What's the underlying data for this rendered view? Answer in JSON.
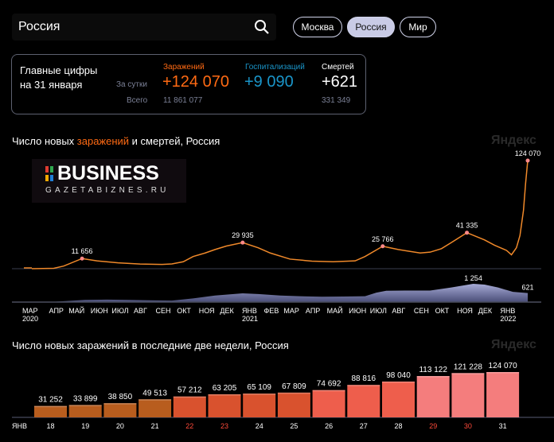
{
  "search": {
    "value": "Россия",
    "icon": "search-icon"
  },
  "tabs": [
    {
      "label": "Москва",
      "active": false
    },
    {
      "label": "Россия",
      "active": true
    },
    {
      "label": "Мир",
      "active": false
    }
  ],
  "summary": {
    "title_line1": "Главные цифры",
    "title_line2": "на 31 января",
    "per_day_label": "За сутки",
    "total_label": "Всего",
    "infections": {
      "label": "Заражений",
      "today": "+124 070",
      "total": "11 861 077",
      "color": "#ff6a13"
    },
    "hospitalizations": {
      "label": "Госпитализаций",
      "today": "+9 090",
      "color": "#1a95c9"
    },
    "deaths": {
      "label": "Смертей",
      "today": "+621",
      "total": "331 349",
      "color": "#ffffff"
    }
  },
  "brand": "Яндекс",
  "chart_data": [
    {
      "type": "line",
      "title_parts": [
        "Число новых ",
        "заражений",
        " и смертей, Россия"
      ],
      "cases_color": "#f0892a",
      "deaths_color": "#8e93c2",
      "x_ticks": [
        {
          "label": "МАР",
          "date": "2020-03-01",
          "year": "2020"
        },
        {
          "label": "АПР",
          "date": "2020-04-01"
        },
        {
          "label": "МАЙ",
          "date": "2020-05-01"
        },
        {
          "label": "ИЮН",
          "date": "2020-06-01"
        },
        {
          "label": "ИЮЛ",
          "date": "2020-07-01"
        },
        {
          "label": "АВГ",
          "date": "2020-08-01"
        },
        {
          "label": "СЕН",
          "date": "2020-09-01"
        },
        {
          "label": "ОКТ",
          "date": "2020-10-01"
        },
        {
          "label": "НОЯ",
          "date": "2020-11-01"
        },
        {
          "label": "ДЕК",
          "date": "2020-12-01"
        },
        {
          "label": "ЯНВ",
          "date": "2021-01-01",
          "year": "2021"
        },
        {
          "label": "ФЕВ",
          "date": "2021-02-01"
        },
        {
          "label": "МАР",
          "date": "2021-03-01"
        },
        {
          "label": "АПР",
          "date": "2021-04-01"
        },
        {
          "label": "МАЙ",
          "date": "2021-05-01"
        },
        {
          "label": "ИЮН",
          "date": "2021-06-01"
        },
        {
          "label": "ИЮЛ",
          "date": "2021-07-01"
        },
        {
          "label": "АВГ",
          "date": "2021-08-01"
        },
        {
          "label": "СЕН",
          "date": "2021-09-01"
        },
        {
          "label": "ОКТ",
          "date": "2021-10-01"
        },
        {
          "label": "НОЯ",
          "date": "2021-11-01"
        },
        {
          "label": "ДЕК",
          "date": "2021-12-01"
        },
        {
          "label": "ЯНВ",
          "date": "2022-01-01",
          "year": "2022"
        }
      ],
      "cases": [
        [
          "2020-03-01",
          0
        ],
        [
          "2020-04-01",
          500
        ],
        [
          "2020-04-15",
          3000
        ],
        [
          "2020-05-11",
          11656
        ],
        [
          "2020-06-01",
          9000
        ],
        [
          "2020-07-01",
          6700
        ],
        [
          "2020-08-01",
          5400
        ],
        [
          "2020-09-01",
          4900
        ],
        [
          "2020-09-15",
          5500
        ],
        [
          "2020-10-01",
          8000
        ],
        [
          "2020-10-15",
          14000
        ],
        [
          "2020-11-01",
          18000
        ],
        [
          "2020-11-15",
          22000
        ],
        [
          "2020-12-01",
          26000
        ],
        [
          "2020-12-24",
          29935
        ],
        [
          "2021-01-15",
          24000
        ],
        [
          "2021-02-01",
          18000
        ],
        [
          "2021-03-01",
          11000
        ],
        [
          "2021-04-01",
          8700
        ],
        [
          "2021-05-01",
          8000
        ],
        [
          "2021-06-01",
          9000
        ],
        [
          "2021-06-15",
          14000
        ],
        [
          "2021-07-10",
          25766
        ],
        [
          "2021-08-01",
          22000
        ],
        [
          "2021-09-01",
          18000
        ],
        [
          "2021-09-15",
          19000
        ],
        [
          "2021-10-01",
          23000
        ],
        [
          "2021-10-15",
          30000
        ],
        [
          "2021-11-06",
          41335
        ],
        [
          "2021-12-01",
          33000
        ],
        [
          "2021-12-15",
          27000
        ],
        [
          "2022-01-01",
          21000
        ],
        [
          "2022-01-08",
          16000
        ],
        [
          "2022-01-15",
          24000
        ],
        [
          "2022-01-20",
          38000
        ],
        [
          "2022-01-25",
          67000
        ],
        [
          "2022-01-28",
          98000
        ],
        [
          "2022-01-31",
          124070
        ]
      ],
      "cases_labels": [
        [
          "2020-05-11",
          "11 656"
        ],
        [
          "2020-12-24",
          "29 935"
        ],
        [
          "2021-07-10",
          "25 766"
        ],
        [
          "2021-11-06",
          "41 335"
        ],
        [
          "2022-01-31",
          "124 070"
        ]
      ],
      "deaths": [
        [
          "2020-03-15",
          0
        ],
        [
          "2020-04-01",
          20
        ],
        [
          "2020-05-15",
          150
        ],
        [
          "2020-06-15",
          170
        ],
        [
          "2020-07-15",
          150
        ],
        [
          "2020-08-15",
          120
        ],
        [
          "2020-09-15",
          100
        ],
        [
          "2020-10-15",
          250
        ],
        [
          "2020-11-15",
          450
        ],
        [
          "2020-12-24",
          600
        ],
        [
          "2021-01-15",
          550
        ],
        [
          "2021-02-15",
          450
        ],
        [
          "2021-03-15",
          400
        ],
        [
          "2021-04-15",
          370
        ],
        [
          "2021-05-15",
          380
        ],
        [
          "2021-06-15",
          400
        ],
        [
          "2021-07-01",
          650
        ],
        [
          "2021-07-15",
          780
        ],
        [
          "2021-08-15",
          790
        ],
        [
          "2021-09-15",
          790
        ],
        [
          "2021-10-15",
          1000
        ],
        [
          "2021-11-15",
          1254
        ],
        [
          "2021-12-01",
          1200
        ],
        [
          "2021-12-20",
          1000
        ],
        [
          "2022-01-10",
          700
        ],
        [
          "2022-01-31",
          621
        ]
      ],
      "deaths_labels": [
        [
          "2021-11-15",
          "1 254"
        ],
        [
          "2022-01-31",
          "621"
        ]
      ]
    },
    {
      "type": "bar",
      "title": "Число новых заражений в последние две недели, Россия",
      "month_label": "ЯНВ",
      "categories": [
        "18",
        "19",
        "20",
        "21",
        "22",
        "23",
        "24",
        "25",
        "26",
        "27",
        "28",
        "29",
        "30",
        "31"
      ],
      "weekend": [
        "22",
        "23",
        "29",
        "30"
      ],
      "values": [
        31252,
        33899,
        38850,
        49513,
        57212,
        63205,
        65109,
        67809,
        74692,
        88816,
        98040,
        113122,
        121228,
        124070
      ],
      "labels": [
        "31 252",
        "33 899",
        "38 850",
        "49 513",
        "57 212",
        "63 205",
        "65 109",
        "67 809",
        "74 692",
        "88 816",
        "98 040",
        "113 122",
        "121 228",
        "124 070"
      ],
      "colors": [
        "#b85d1e",
        "#b85d1e",
        "#b85d1e",
        "#b85d1e",
        "#d9522e",
        "#d9522e",
        "#d9522e",
        "#d9522e",
        "#ee5e4c",
        "#ee5e4c",
        "#ee5e4c",
        "#f47d7d",
        "#f47d7d",
        "#f47d7d"
      ]
    }
  ],
  "watermark": {
    "name": "BUSINESS",
    "site": "GAZETABIZNES.RU"
  }
}
